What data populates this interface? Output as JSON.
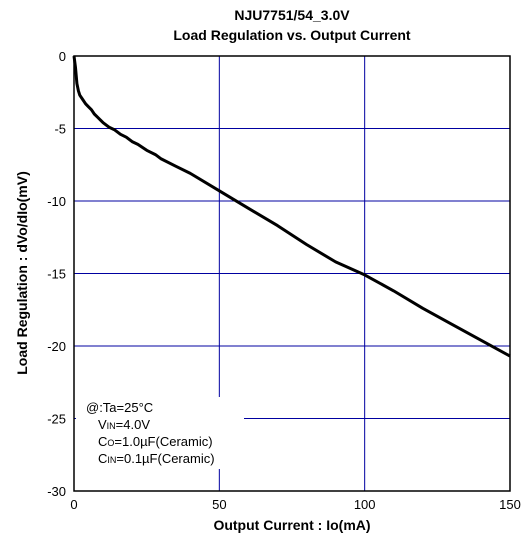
{
  "chart_data": {
    "type": "line",
    "title": "NJU7751/54_3.0V",
    "subtitle": "Load Regulation vs. Output Current",
    "xlabel": "Output Current : Io(mA)",
    "ylabel": "Load Regulation : dVo/dIo(mV)",
    "xlim": [
      0,
      150
    ],
    "ylim": [
      -30,
      0
    ],
    "xticks": [
      0,
      50,
      100,
      150
    ],
    "yticks": [
      0,
      -5,
      -10,
      -15,
      -20,
      -25,
      -30
    ],
    "grid": true,
    "series": [
      {
        "x": [
          0,
          0.5,
          1,
          1.5,
          2,
          3,
          4,
          5,
          6,
          7,
          8,
          10,
          12,
          14,
          16,
          18,
          20,
          22,
          25,
          28,
          30,
          35,
          40,
          50,
          60,
          70,
          80,
          90,
          100,
          110,
          120,
          130,
          140,
          150
        ],
        "y": [
          0,
          -0.8,
          -1.9,
          -2.4,
          -2.7,
          -3.0,
          -3.3,
          -3.5,
          -3.7,
          -4.0,
          -4.2,
          -4.6,
          -4.9,
          -5.1,
          -5.4,
          -5.6,
          -5.9,
          -6.1,
          -6.5,
          -6.8,
          -7.1,
          -7.6,
          -8.1,
          -9.3,
          -10.5,
          -11.7,
          -13.0,
          -14.2,
          -15.1,
          -16.2,
          -17.4,
          -18.5,
          -19.6,
          -20.7
        ]
      }
    ],
    "color": "#000000",
    "grid_color": "#0000a0",
    "annotation": {
      "line1": "@:Ta=25°C",
      "vin_label": "V",
      "vin_sub": "IN",
      "vin_value": "=4.0V",
      "co_label": "C",
      "co_sub": "O",
      "co_value": "=1.0µF(Ceramic)",
      "cin_label": "C",
      "cin_sub": "IN",
      "cin_value": "=0.1µF(Ceramic)"
    }
  }
}
